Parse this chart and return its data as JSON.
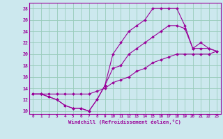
{
  "xlabel": "Windchill (Refroidissement éolien,°C)",
  "bg_color": "#cce8ee",
  "line_color": "#990099",
  "grid_color": "#99ccbb",
  "xlim": [
    -0.5,
    23.5
  ],
  "ylim": [
    9.5,
    29.0
  ],
  "xticks": [
    0,
    1,
    2,
    3,
    4,
    5,
    6,
    7,
    8,
    9,
    10,
    11,
    12,
    13,
    14,
    15,
    16,
    17,
    18,
    19,
    20,
    21,
    22,
    23
  ],
  "yticks": [
    10,
    12,
    14,
    16,
    18,
    20,
    22,
    24,
    26,
    28
  ],
  "line1_x": [
    0,
    1,
    2,
    3,
    4,
    5,
    6,
    7,
    8,
    9,
    10,
    11,
    12,
    13,
    14,
    15,
    16,
    17,
    18,
    19,
    20,
    21,
    22,
    23
  ],
  "line1_y": [
    13,
    13,
    13,
    13,
    13,
    13,
    13,
    13,
    13.5,
    14,
    15,
    15.5,
    16,
    17,
    17.5,
    18.5,
    19,
    19.5,
    20,
    20,
    20,
    20,
    20,
    20.5
  ],
  "line2_x": [
    0,
    1,
    2,
    3,
    4,
    5,
    6,
    7,
    8,
    9,
    10,
    11,
    12,
    13,
    14,
    15,
    16,
    17,
    18,
    19,
    20,
    21,
    22,
    23
  ],
  "line2_y": [
    13,
    13,
    12.5,
    12,
    11,
    10.5,
    10.5,
    10,
    12,
    14.5,
    20,
    22,
    24,
    25,
    26,
    28,
    28,
    28,
    28,
    25,
    21,
    21,
    21,
    20.5
  ],
  "line3_x": [
    0,
    1,
    2,
    3,
    4,
    5,
    6,
    7,
    8,
    9,
    10,
    11,
    12,
    13,
    14,
    15,
    16,
    17,
    18,
    19,
    20,
    21,
    22,
    23
  ],
  "line3_y": [
    13,
    13,
    12.5,
    12,
    11,
    10.5,
    10.5,
    10,
    12,
    14.5,
    17.5,
    18,
    20,
    21,
    22,
    23,
    24,
    25,
    25,
    24.5,
    21,
    22,
    21,
    20.5
  ]
}
